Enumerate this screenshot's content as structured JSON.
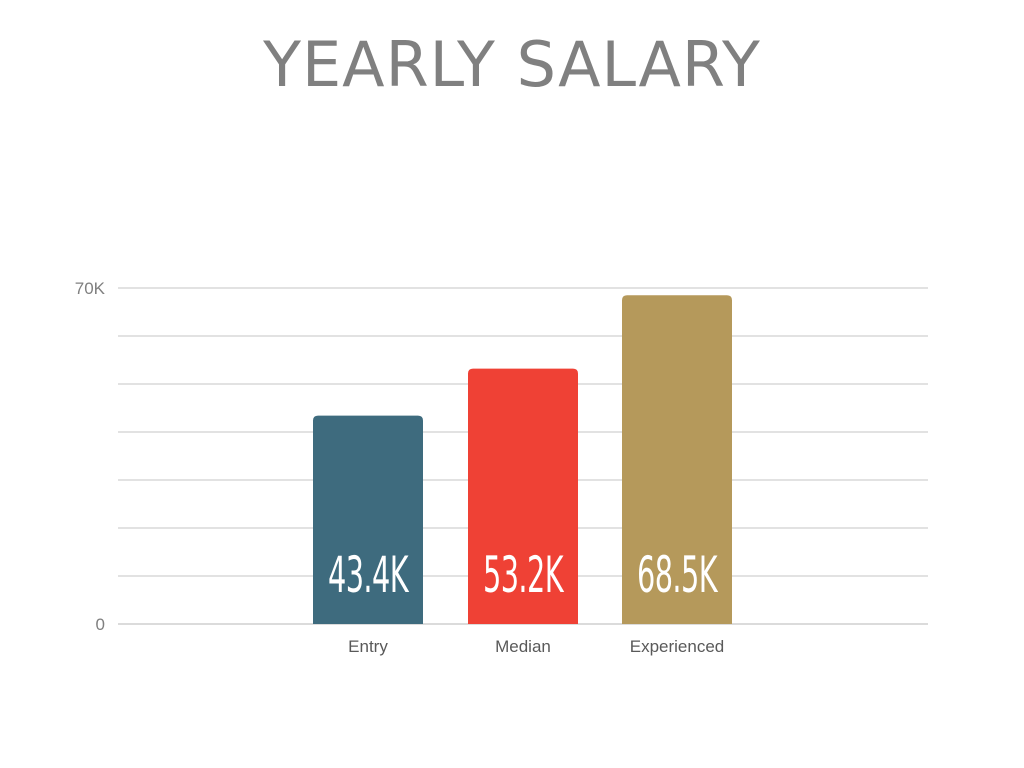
{
  "header": {
    "title": "YEARLY SALARY"
  },
  "chart_data": {
    "type": "bar",
    "title": "YEARLY SALARY",
    "xlabel": "",
    "ylabel": "",
    "categories": [
      "Entry",
      "Median",
      "Experienced"
    ],
    "values": [
      43.4,
      53.2,
      68.5
    ],
    "value_labels": [
      "43.4K",
      "53.2K",
      "68.5K"
    ],
    "colors": [
      "#3e6b7e",
      "#ef4135",
      "#b5995b"
    ],
    "ylim": [
      0,
      70
    ],
    "y_ticks": [
      {
        "value": 0,
        "label": "0"
      },
      {
        "value": 70,
        "label": "70K"
      }
    ],
    "gridline_values": [
      0,
      10,
      20,
      30,
      40,
      50,
      60,
      70
    ],
    "grid": true,
    "legend": "none"
  }
}
